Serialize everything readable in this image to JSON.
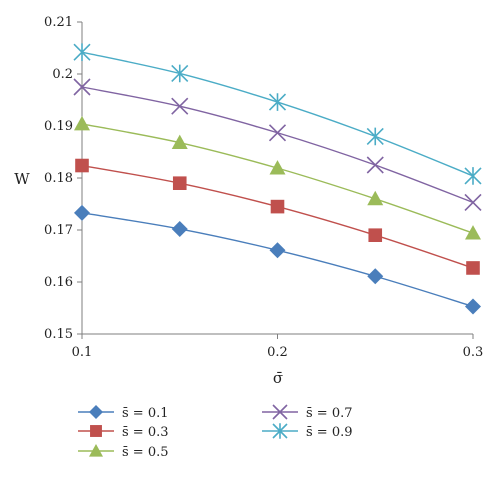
{
  "chart_data": {
    "type": "line",
    "xlabel": "σ̄",
    "ylabel": "W",
    "xlim": [
      0.1,
      0.3
    ],
    "ylim": [
      0.15,
      0.21
    ],
    "x_ticks": [
      "0.1",
      "0.2",
      "0.3"
    ],
    "y_ticks": [
      "0.15",
      "0.16",
      "0.17",
      "0.18",
      "0.19",
      "0.2",
      "0.21"
    ],
    "grid": false,
    "legend_position": "bottom",
    "x": [
      0.1,
      0.15,
      0.2,
      0.25,
      0.3
    ],
    "series": [
      {
        "name": "s̄ = 0.1",
        "marker": "diamond",
        "color": "#4a7ebb",
        "values": [
          0.1733,
          0.1702,
          0.1661,
          0.1611,
          0.1553
        ]
      },
      {
        "name": "s̄ = 0.3",
        "marker": "square",
        "color": "#c0504d",
        "values": [
          0.1824,
          0.179,
          0.1745,
          0.169,
          0.1627
        ]
      },
      {
        "name": "s̄ = 0.5",
        "marker": "triangle",
        "color": "#9bbb59",
        "values": [
          0.1904,
          0.1868,
          0.1819,
          0.176,
          0.1694
        ]
      },
      {
        "name": "s̄ = 0.7",
        "marker": "x",
        "color": "#8064a2",
        "values": [
          0.1975,
          0.1938,
          0.1887,
          0.1825,
          0.1753
        ]
      },
      {
        "name": "s̄ = 0.9",
        "marker": "star",
        "color": "#4bacc6",
        "values": [
          0.2042,
          0.2001,
          0.1946,
          0.188,
          0.1804
        ]
      }
    ]
  }
}
